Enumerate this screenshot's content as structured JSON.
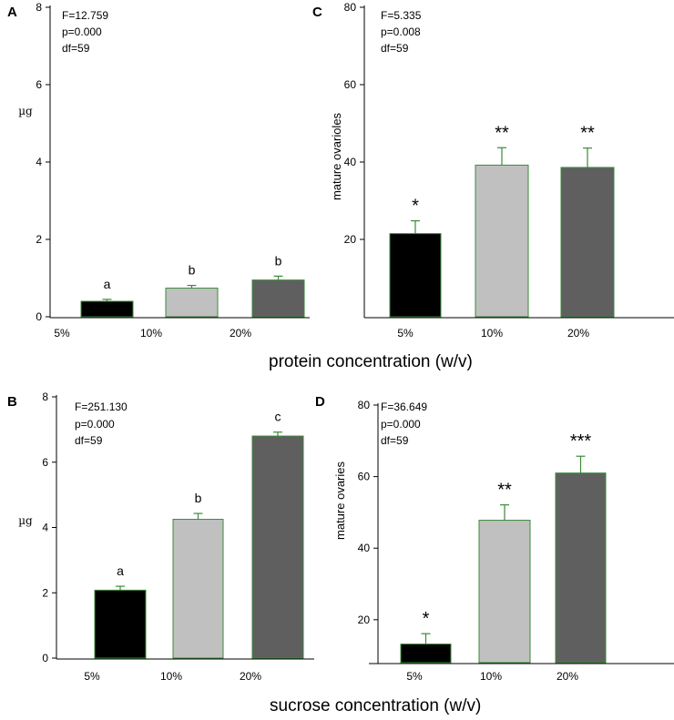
{
  "x_titles": {
    "top": "protein concentration (w/v)",
    "bottom": "sucrose concentration (w/v)"
  },
  "colors": {
    "bar_fills": [
      "#000000",
      "#c0c0c0",
      "#5f5f5f"
    ],
    "bar_edge": "#3a8a3a",
    "axis": "#000000"
  },
  "chart_data": [
    {
      "panel": "A",
      "type": "bar",
      "title": "",
      "categories": [
        "5%",
        "10%",
        "20%"
      ],
      "values": [
        0.4,
        0.74,
        0.95
      ],
      "errors": [
        0.05,
        0.07,
        0.1
      ],
      "labels": [
        "a",
        "b",
        "b"
      ],
      "ylabel": "µg",
      "xlabel": "protein concentration (w/v)",
      "ylim": [
        0,
        8
      ],
      "yticks": [
        0,
        2,
        4,
        6,
        8
      ],
      "stats": [
        "F=12.759",
        "p=0.000",
        "df=59"
      ]
    },
    {
      "panel": "C",
      "type": "bar",
      "title": "",
      "categories": [
        "5%",
        "10%",
        "20%"
      ],
      "values": [
        21.5,
        39.2,
        38.6
      ],
      "errors": [
        3.3,
        4.5,
        5.0
      ],
      "labels": [
        "*",
        "**",
        "**"
      ],
      "ylabel": "mature ovarioles",
      "xlabel": "protein concentration (w/v)",
      "ylim": [
        0,
        80
      ],
      "yticks": [
        20,
        40,
        60,
        80
      ],
      "stats": [
        "F=5.335",
        "p=0.008",
        "df=59"
      ]
    },
    {
      "panel": "B",
      "type": "bar",
      "title": "",
      "categories": [
        "5%",
        "10%",
        "20%"
      ],
      "values": [
        2.08,
        4.25,
        6.8
      ],
      "errors": [
        0.12,
        0.18,
        0.12
      ],
      "labels": [
        "a",
        "b",
        "c"
      ],
      "ylabel": "µg",
      "xlabel": "sucrose concentration (w/v)",
      "ylim": [
        0,
        8
      ],
      "yticks": [
        0,
        2,
        4,
        6,
        8
      ],
      "stats": [
        "F=251.130",
        "p=0.000",
        "df=59"
      ]
    },
    {
      "panel": "D",
      "type": "bar",
      "title": "",
      "categories": [
        "5%",
        "10%",
        "20%"
      ],
      "values": [
        13.2,
        47.8,
        61.0
      ],
      "errors": [
        2.9,
        4.3,
        4.7
      ],
      "labels": [
        "*",
        "**",
        "***"
      ],
      "ylabel": "mature ovaries",
      "xlabel": "sucrose concentration (w/v)",
      "ylim": [
        8,
        80
      ],
      "yticks": [
        20,
        40,
        60,
        80
      ],
      "stats": [
        "F=36.649",
        "p=0.000",
        "df=59"
      ]
    }
  ]
}
